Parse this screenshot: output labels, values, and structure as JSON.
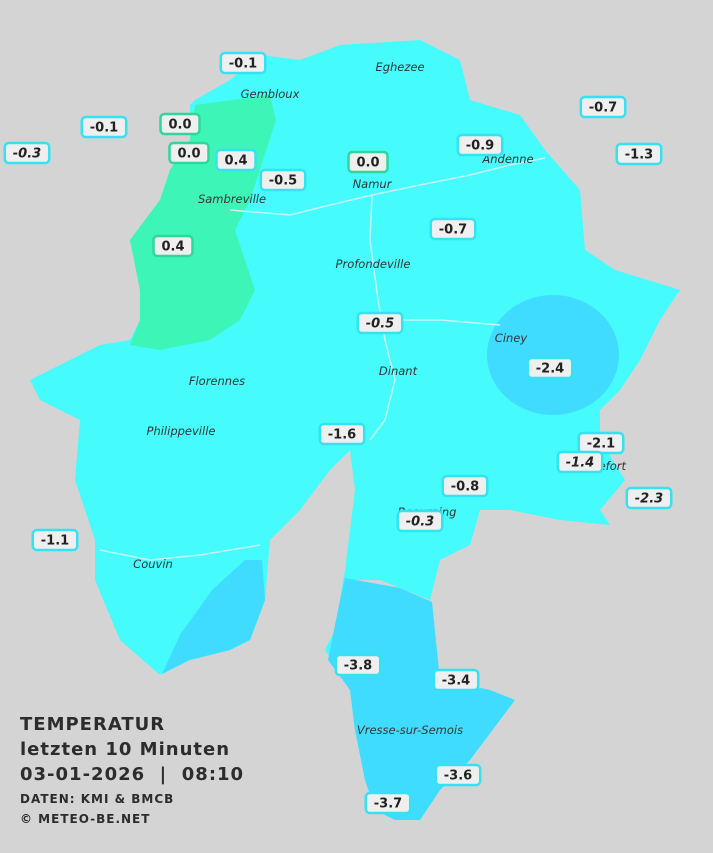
{
  "title": {
    "heading": "TEMPERATUR",
    "subtitle": "letzten 10 Minuten",
    "datetime": "03-01-2026  |  08:10",
    "source": "DATEN: KMI & BMCB",
    "copyright": "© METEO-BE.NET"
  },
  "cities": [
    "Eghezee",
    "Gembloux",
    "Andenne",
    "Namur",
    "Sambreville",
    "Profondeville",
    "Ciney",
    "Dinant",
    "Florennes",
    "Philippeville",
    "Rochefort",
    "Beauraing",
    "Couvin",
    "Vresse-sur-Semois"
  ],
  "stations": [
    "-0.1",
    "-0.1",
    "-0.3",
    "0.0",
    "0.0",
    "0.4",
    "-0.5",
    "0.0",
    "-0.9",
    "-0.7",
    "-1.3",
    "0.4",
    "-0.7",
    "-0.5",
    "-2.4",
    "-1.6",
    "-2.1",
    "-1.4",
    "-0.8",
    "-2.3",
    "-0.3",
    "-1.1",
    "-3.8",
    "-3.4",
    "-3.6",
    "-3.7"
  ]
}
